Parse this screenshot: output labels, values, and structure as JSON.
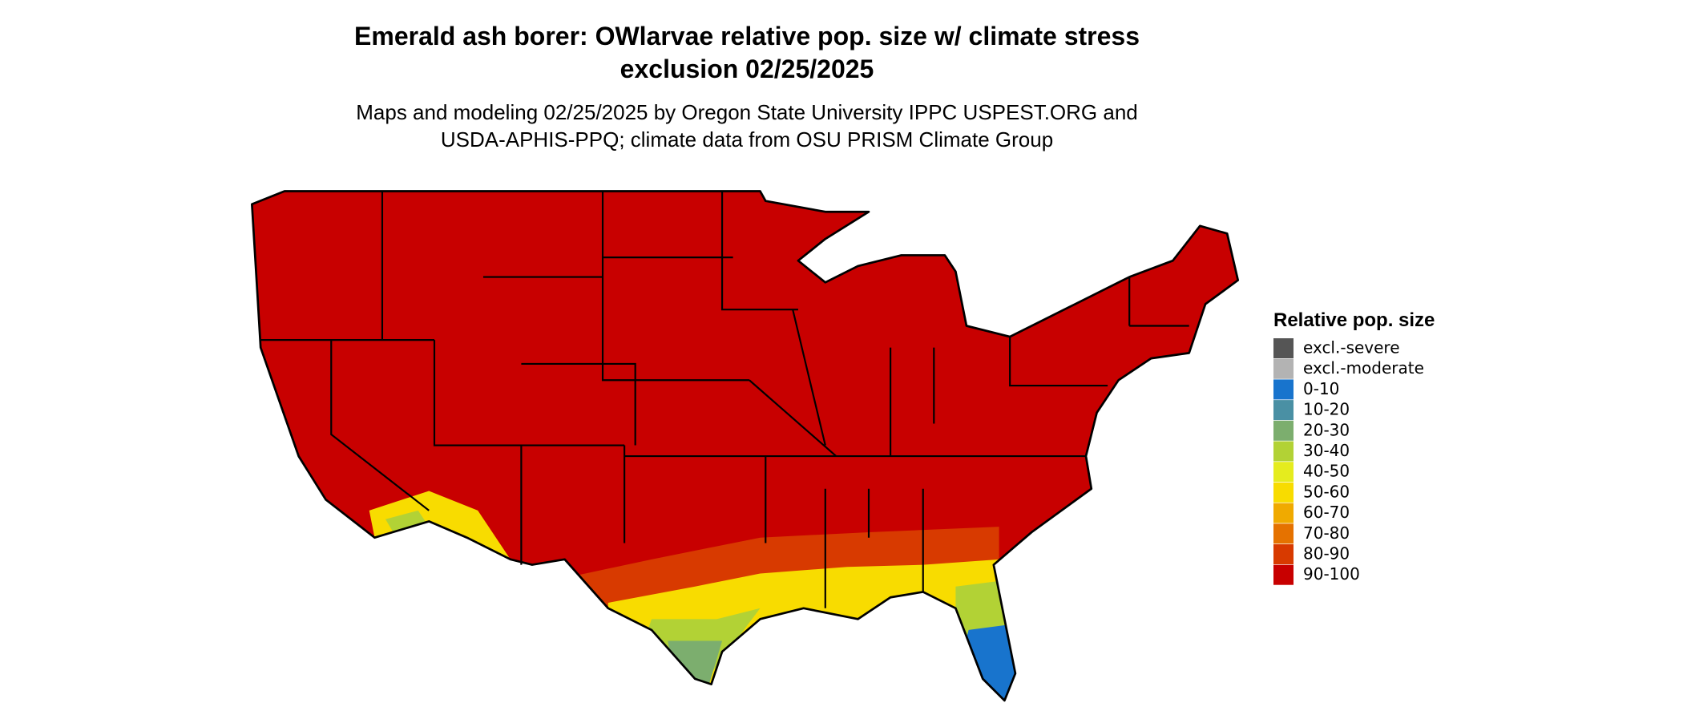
{
  "title": [
    "Emerald ash borer: OWlarvae relative pop. size w/ climate stress",
    "exclusion 02/25/2025"
  ],
  "subtitle": [
    "Maps and modeling 02/25/2025 by Oregon State University IPPC USPEST.ORG and",
    "USDA-APHIS-PPQ; climate data from OSU PRISM Climate Group"
  ],
  "legend": {
    "title": "Relative pop. size",
    "items": [
      {
        "name": "excl.-severe",
        "color": "#555555"
      },
      {
        "name": "excl.-moderate",
        "color": "#b3b3b3"
      },
      {
        "name": "0-10",
        "color": "#1874cd"
      },
      {
        "name": "10-20",
        "color": "#4a90a4"
      },
      {
        "name": "20-30",
        "color": "#7cae6e"
      },
      {
        "name": "30-40",
        "color": "#b2d235"
      },
      {
        "name": "40-50",
        "color": "#e5ec1e"
      },
      {
        "name": "50-60",
        "color": "#f8dc00"
      },
      {
        "name": "60-70",
        "color": "#f0aa00"
      },
      {
        "name": "70-80",
        "color": "#e57200"
      },
      {
        "name": "80-90",
        "color": "#d83a00"
      },
      {
        "name": "90-100",
        "color": "#c80000"
      }
    ]
  }
}
